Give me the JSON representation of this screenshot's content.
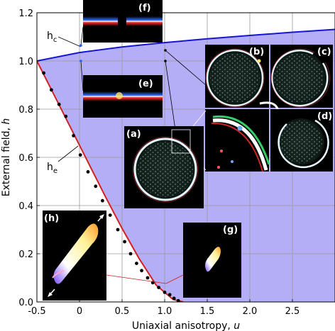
{
  "chart_data": {
    "type": "line",
    "xlabel": "Uniaxial anisotropy, u",
    "xlabel_parts": {
      "text": "Uniaxial anisotropy, ",
      "var": "u"
    },
    "ylabel": "External field, h",
    "ylabel_parts": {
      "text": "External field, ",
      "var": "h"
    },
    "xlim": [
      -0.5,
      3.0
    ],
    "ylim": [
      0.0,
      1.2
    ],
    "x_ticks": [
      -0.5,
      0.0,
      0.5,
      1.0,
      1.5,
      2.0,
      2.5
    ],
    "x_tick_labels": [
      "-0.5",
      "0",
      "0.5",
      "1.0",
      "1.5",
      "2.0",
      "2.5"
    ],
    "y_ticks": [
      0.0,
      0.2,
      0.4,
      0.6,
      0.8,
      1.0,
      1.2
    ],
    "y_tick_labels": [
      "0.0",
      "0.2",
      "0.4",
      "0.6",
      "0.8",
      "1.0",
      "1.2"
    ],
    "grid": true,
    "region_fill_color": "#b4aef7",
    "series": [
      {
        "name": "h_c",
        "label_main": "h",
        "label_sub": "c",
        "color": "#1515d6",
        "x": [
          -0.5,
          0.0,
          0.5,
          1.0,
          1.5,
          2.0,
          2.5,
          3.0
        ],
        "y": [
          1.0,
          1.035,
          1.058,
          1.076,
          1.092,
          1.106,
          1.119,
          1.131
        ]
      },
      {
        "name": "h_e",
        "label_main": "h",
        "label_sub": "e",
        "color": "#d62020",
        "x": [
          -0.5,
          -0.3,
          -0.1,
          0.1,
          0.3,
          0.5,
          0.7,
          0.9,
          1.1,
          1.22
        ],
        "y": [
          1.0,
          0.86,
          0.72,
          0.58,
          0.44,
          0.305,
          0.18,
          0.07,
          0.01,
          0.0
        ]
      }
    ],
    "simulation_points": {
      "x": [
        -0.42,
        -0.33,
        -0.24,
        -0.16,
        -0.07,
        0.01,
        0.1,
        0.19,
        0.27,
        0.36,
        0.45,
        0.53,
        0.6,
        0.67,
        0.73,
        0.8,
        0.86,
        0.93,
        1.0,
        1.06,
        1.11,
        1.16
      ],
      "y": [
        0.95,
        0.88,
        0.82,
        0.77,
        0.69,
        0.61,
        0.54,
        0.48,
        0.42,
        0.36,
        0.3,
        0.25,
        0.2,
        0.16,
        0.13,
        0.1,
        0.08,
        0.06,
        0.04,
        0.03,
        0.015,
        0.005
      ],
      "color": "#000000"
    },
    "inset_labels": [
      "(a)",
      "(b)",
      "(c)",
      "(d)",
      "(e)",
      "(f)",
      "(g)",
      "(h)"
    ]
  }
}
